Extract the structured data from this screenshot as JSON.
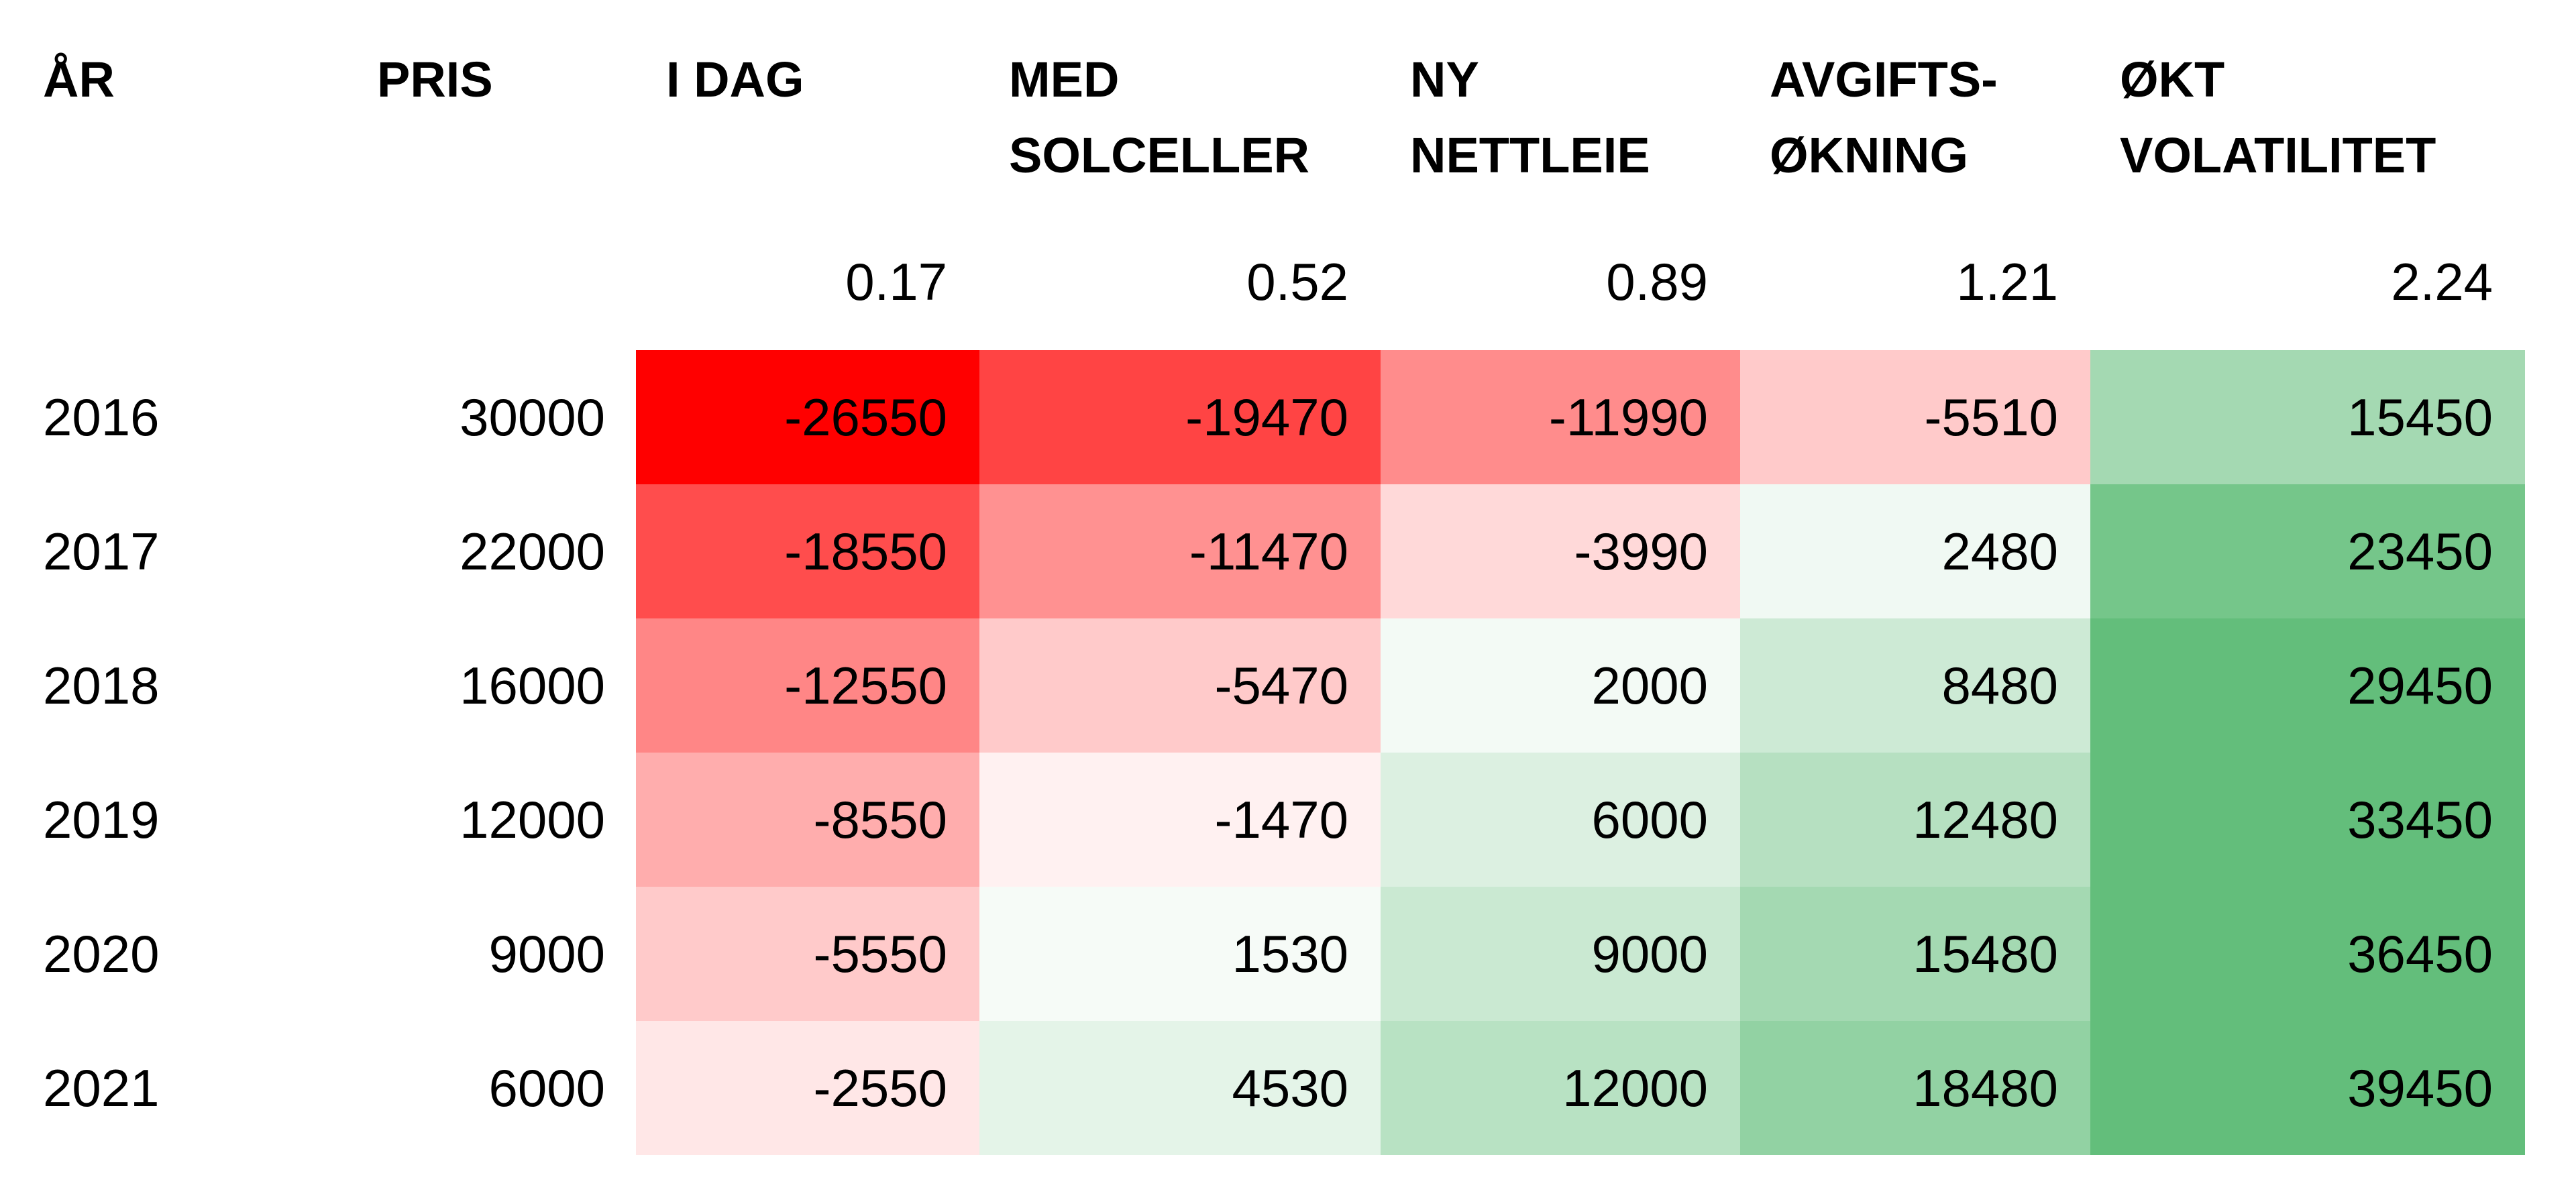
{
  "chart_data": {
    "type": "table",
    "headers": {
      "year": "ÅR",
      "price": "PRIS",
      "scenarios": [
        "I DAG",
        "MED\nSOLCELLER",
        "NY\nNETTLEIE",
        "AVGIFTS-\nØKNING",
        "ØKT\nVOLATILITET"
      ]
    },
    "factors": [
      "0.17",
      "0.52",
      "0.89",
      "1.21",
      "2.24"
    ],
    "rows": [
      {
        "year": "2016",
        "price": "30000",
        "values": [
          "-26550",
          "-19470",
          "-11990",
          "-5510",
          "15450"
        ]
      },
      {
        "year": "2017",
        "price": "22000",
        "values": [
          "-18550",
          "-11470",
          "-3990",
          "2480",
          "23450"
        ]
      },
      {
        "year": "2018",
        "price": "16000",
        "values": [
          "-12550",
          "-5470",
          "2000",
          "8480",
          "29450"
        ]
      },
      {
        "year": "2019",
        "price": "12000",
        "values": [
          "-8550",
          "-1470",
          "6000",
          "12480",
          "33450"
        ]
      },
      {
        "year": "2020",
        "price": "9000",
        "values": [
          "-5550",
          "1530",
          "9000",
          "15480",
          "36450"
        ]
      },
      {
        "year": "2021",
        "price": "6000",
        "values": [
          "-2550",
          "4530",
          "12000",
          "18480",
          "39450"
        ]
      }
    ],
    "color_scale": {
      "negative_max": "#ff0000",
      "neutral": "#ffffff",
      "positive_max": "#63be7b"
    }
  }
}
